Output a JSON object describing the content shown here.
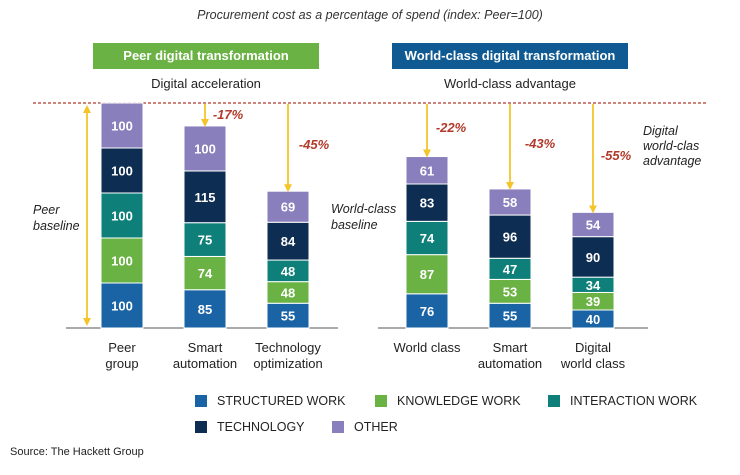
{
  "title": "Procurement cost as a percentage of spend (index: Peer=100)",
  "banners": {
    "peer": "Peer digital transformation",
    "world": "World-class digital transformation"
  },
  "subheads": {
    "peer": "Digital acceleration",
    "world": "World-class advantage"
  },
  "annotations": {
    "peer_baseline": [
      "Peer",
      "baseline"
    ],
    "world_baseline": [
      "World-class",
      "baseline"
    ],
    "digital_advantage": [
      "Digital",
      "world-clas",
      "advantage"
    ]
  },
  "source": "Source: The Hackett Group",
  "colors": {
    "structured": "#1a64a6",
    "knowledge": "#6bb244",
    "interaction": "#0e8079",
    "technology": "#0e2d52",
    "other": "#8a7fbd",
    "arrow": "#f3c52a",
    "pct": "#b23a2a",
    "dash": "#b23a2a",
    "baseline": "#555555"
  },
  "legend": [
    {
      "key": "structured",
      "label": "STRUCTURED WORK"
    },
    {
      "key": "knowledge",
      "label": "KNOWLEDGE WORK"
    },
    {
      "key": "interaction",
      "label": "INTERACTION WORK"
    },
    {
      "key": "technology",
      "label": "TECHNOLOGY"
    },
    {
      "key": "other",
      "label": "OTHER"
    }
  ],
  "chart_data": {
    "type": "bar",
    "stacked": true,
    "title": "Procurement cost as a percentage of spend (index: Peer=100)",
    "segment_order": [
      "structured",
      "knowledge",
      "interaction",
      "technology",
      "other"
    ],
    "groups": [
      {
        "name": "Peer digital transformation",
        "bars": [
          {
            "label": [
              "Peer",
              "group"
            ],
            "change": "",
            "values": {
              "structured": 100,
              "knowledge": 100,
              "interaction": 100,
              "technology": 100,
              "other": 100
            }
          },
          {
            "label": [
              "Smart",
              "automation"
            ],
            "change": "-17%",
            "values": {
              "structured": 85,
              "knowledge": 74,
              "interaction": 75,
              "technology": 115,
              "other": 100
            }
          },
          {
            "label": [
              "Technology",
              "optimization"
            ],
            "change": "-45%",
            "values": {
              "structured": 55,
              "knowledge": 48,
              "interaction": 48,
              "technology": 84,
              "other": 69
            }
          }
        ]
      },
      {
        "name": "World-class digital transformation",
        "bars": [
          {
            "label": [
              "World class"
            ],
            "change": "-22%",
            "values": {
              "structured": 76,
              "knowledge": 87,
              "interaction": 74,
              "technology": 83,
              "other": 61
            }
          },
          {
            "label": [
              "Smart",
              "automation"
            ],
            "change": "-43%",
            "values": {
              "structured": 55,
              "knowledge": 53,
              "interaction": 47,
              "technology": 96,
              "other": 58
            }
          },
          {
            "label": [
              "Digital",
              "world class"
            ],
            "change": "-55%",
            "values": {
              "structured": 40,
              "knowledge": 39,
              "interaction": 34,
              "technology": 90,
              "other": 54
            }
          }
        ]
      }
    ]
  }
}
